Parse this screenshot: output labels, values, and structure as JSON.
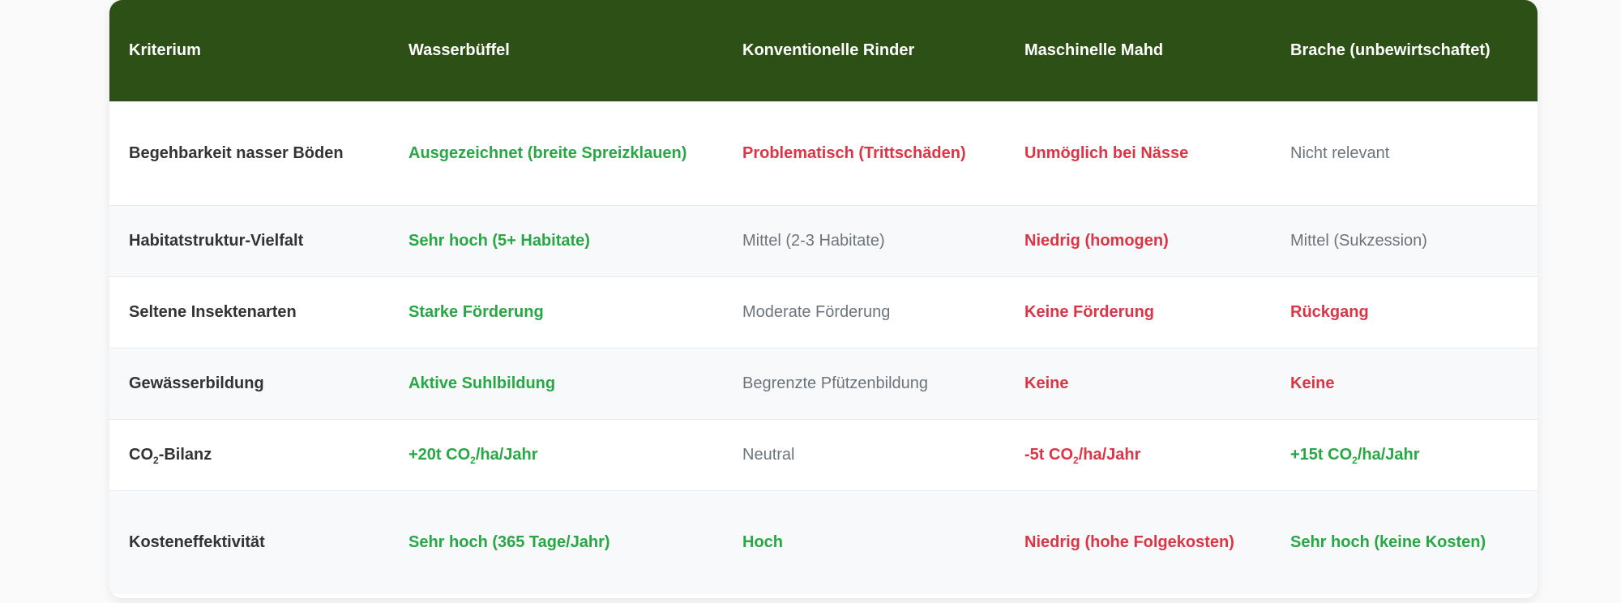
{
  "colors": {
    "header_bg": "#2d5016",
    "good": "#28a745",
    "bad": "#dc3545",
    "neutral": "#6c757d",
    "text": "#333333"
  },
  "table": {
    "headers": [
      "Kriterium",
      "Wasserbüffel",
      "Konventionelle Rinder",
      "Maschinelle Mahd",
      "Brache (unbewirtschaftet)"
    ],
    "rows": [
      {
        "tall": true,
        "cells": [
          {
            "text": "Begehbarkeit nasser Böden"
          },
          {
            "text": "Ausgezeichnet (breite Spreizklauen)",
            "rating": "good"
          },
          {
            "text": "Problematisch (Trittschäden)",
            "rating": "bad"
          },
          {
            "text": "Unmöglich bei Nässe",
            "rating": "bad"
          },
          {
            "text": "Nicht relevant",
            "rating": "neutral"
          }
        ]
      },
      {
        "cells": [
          {
            "text": "Habitatstruktur-Vielfalt"
          },
          {
            "text": "Sehr hoch (5+ Habitate)",
            "rating": "good"
          },
          {
            "text": "Mittel (2-3 Habitate)",
            "rating": "neutral"
          },
          {
            "text": "Niedrig (homogen)",
            "rating": "bad"
          },
          {
            "text": "Mittel (Sukzession)",
            "rating": "neutral"
          }
        ]
      },
      {
        "cells": [
          {
            "text": "Seltene Insektenarten"
          },
          {
            "text": "Starke Förderung",
            "rating": "good"
          },
          {
            "text": "Moderate Förderung",
            "rating": "neutral"
          },
          {
            "text": "Keine Förderung",
            "rating": "bad"
          },
          {
            "text": "Rückgang",
            "rating": "bad"
          }
        ]
      },
      {
        "cells": [
          {
            "text": "Gewässerbildung"
          },
          {
            "text": "Aktive Suhlbildung",
            "rating": "good"
          },
          {
            "text": "Begrenzte Pfützenbildung",
            "rating": "neutral"
          },
          {
            "text": "Keine",
            "rating": "bad"
          },
          {
            "text": "Keine",
            "rating": "bad"
          }
        ]
      },
      {
        "cells": [
          {
            "pre": "CO",
            "sub": "2",
            "post": "-Bilanz"
          },
          {
            "pre": "+20t CO",
            "sub": "2",
            "post": "/ha/Jahr",
            "rating": "good"
          },
          {
            "text": "Neutral",
            "rating": "neutral"
          },
          {
            "pre": "-5t CO",
            "sub": "2",
            "post": "/ha/Jahr",
            "rating": "bad"
          },
          {
            "pre": "+15t CO",
            "sub": "2",
            "post": "/ha/Jahr",
            "rating": "good"
          }
        ]
      },
      {
        "tall": true,
        "cells": [
          {
            "text": "Kosteneffektivität"
          },
          {
            "text": "Sehr hoch (365 Tage/Jahr)",
            "rating": "good"
          },
          {
            "text": "Hoch",
            "rating": "good"
          },
          {
            "text": "Niedrig (hohe Folgekosten)",
            "rating": "bad"
          },
          {
            "text": "Sehr hoch (keine Kosten)",
            "rating": "good"
          }
        ]
      }
    ]
  }
}
